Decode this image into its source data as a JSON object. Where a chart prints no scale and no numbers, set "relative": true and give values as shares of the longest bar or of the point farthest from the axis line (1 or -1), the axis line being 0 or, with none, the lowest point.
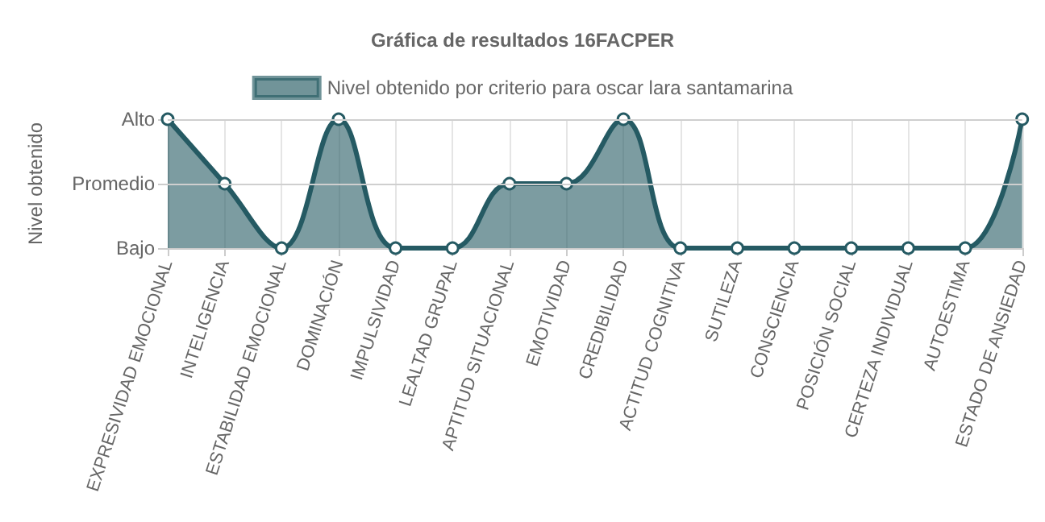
{
  "chart_data": {
    "type": "area",
    "title": "Gráfica de resultados 16FACPER",
    "ylabel": "Nivel obtenido",
    "categories": [
      "EXPRESIVIDAD EMOCIONAL",
      "INTELIGENCIA",
      "ESTABILIDAD EMOCIONAL",
      "DOMINACIÓN",
      "IMPULSIVIDAD",
      "LEALTAD GRUPAL",
      "APTITUD SITUACIONAL",
      "EMOTIVIDAD",
      "CREDIBILIDAD",
      "ACTITUD COGNITIVA",
      "SUTILEZA",
      "CONSCIENCIA",
      "POSICIÓN SOCIAL",
      "CERTEZA INDIVIDUAL",
      "AUTOESTIMA",
      "ESTADO DE ANSIEDAD"
    ],
    "series": [
      {
        "name": "Nivel obtenido por criterio para oscar lara santamarina",
        "color": "#255a63",
        "values": [
          1,
          0.5,
          0,
          1,
          0,
          0,
          0.5,
          0.5,
          1,
          0,
          0,
          0,
          0,
          0,
          0,
          1
        ]
      }
    ],
    "relative": true,
    "y_categories": [
      "Alto",
      "Promedio",
      "Bajo"
    ],
    "ref_lines": [
      {
        "axis": "y",
        "value": 1,
        "color": "#cfcfcf"
      },
      {
        "axis": "y",
        "value": 0.5,
        "color": "#cfcfcf"
      }
    ],
    "grid": "x",
    "legend": "top",
    "marker": "circle",
    "line_style": "solid"
  }
}
